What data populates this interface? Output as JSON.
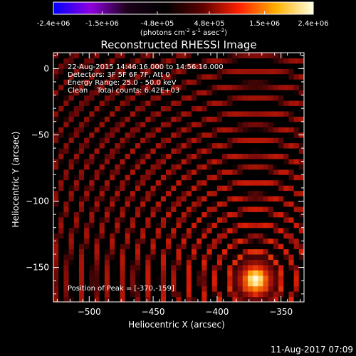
{
  "chart_data": {
    "type": "heatmap",
    "title": "Reconstructed RHESSI Image",
    "colorbar": {
      "ticks": [
        "-2.4e+06",
        "-1.5e+06",
        "-4.8e+05",
        "4.8e+05",
        "1.5e+06",
        "2.4e+06"
      ],
      "tick_values": [
        -2400000,
        -1500000,
        -480000,
        480000,
        1500000,
        2400000
      ],
      "range": [
        -2400000,
        2400000
      ],
      "units": "(photons cm",
      "units_exp1": "-2",
      "units_mid": " s",
      "units_exp2": "-1",
      "units_mid2": " asec",
      "units_end": ")",
      "colors": [
        "#0000ff",
        "#9000e0",
        "#1a0018",
        "#000000",
        "#5a0000",
        "#ff2000",
        "#ffb000",
        "#ffffe0"
      ]
    },
    "info": [
      "22-Aug-2015 14:46:16.000 to 14:56:16.000",
      "Detectors: 3F 5F 6F 7F, Att 0",
      "Energy Range: 25.0 - 50.0 keV",
      "Clean    Total counts: 6.42E+03"
    ],
    "peak_label": "Position of Peak = [-370,-159]",
    "peak": [
      -370,
      -159
    ],
    "xlabel": "Heliocentric X (arcsec)",
    "ylabel": "Heliocentric Y (arcsec)",
    "xlim": [
      -528,
      -332
    ],
    "ylim": [
      -176,
      12
    ],
    "xticks": [
      -500,
      -450,
      -400,
      -350
    ],
    "xtick_labels": [
      "−500",
      "−450",
      "−400",
      "−350"
    ],
    "yticks": [
      0,
      -50,
      -100,
      -150
    ],
    "ytick_labels": [
      "0",
      "−50",
      "−100",
      "−150"
    ],
    "ring_period_arcsec": 10.5,
    "source_radius_arcsec": 9
  },
  "timestamp": "11-Aug-2017 07:09"
}
